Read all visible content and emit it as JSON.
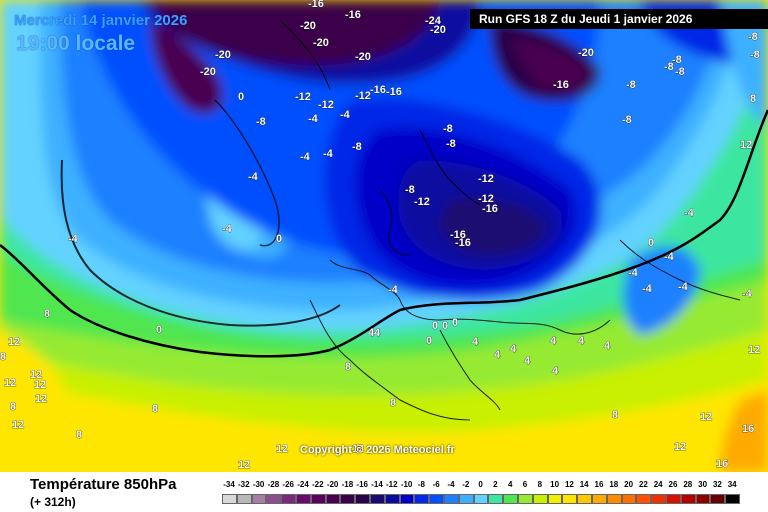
{
  "header": {
    "date": "Mercredi 14 janvier 2026",
    "time": "19:00 locale",
    "run": "Run GFS 18 Z du Jeudi 1 janvier 2026"
  },
  "copyright": "Copyright © 2026 Meteociel.fr",
  "legend": {
    "title": "Température 850hPa",
    "subtitle": "(+ 312h)",
    "ticks": [
      "-34",
      "-32",
      "-30",
      "-28",
      "-26",
      "-24",
      "-22",
      "-20",
      "-18",
      "-16",
      "-14",
      "-12",
      "-10",
      "-8",
      "-6",
      "-4",
      "-2",
      "0",
      "2",
      "4",
      "6",
      "8",
      "10",
      "12",
      "14",
      "16",
      "18",
      "20",
      "22",
      "24",
      "26",
      "28",
      "30",
      "32",
      "34"
    ],
    "colors": [
      "#d8d8d8",
      "#b8b8b8",
      "#a67fa6",
      "#8c4f8c",
      "#7a2a7a",
      "#6a0a6a",
      "#5a005f",
      "#4a0050",
      "#3a0048",
      "#2a004a",
      "#1a0a70",
      "#0a0aa0",
      "#0000c8",
      "#0028e6",
      "#0050ff",
      "#1e80ff",
      "#3cb0ff",
      "#64d2ff",
      "#3ce6a0",
      "#50e650",
      "#96ea32",
      "#c8f000",
      "#f0f000",
      "#ffe600",
      "#ffc800",
      "#ffaa00",
      "#ff8c00",
      "#ff6e00",
      "#ff5000",
      "#f03000",
      "#d81000",
      "#b40000",
      "#8c0000",
      "#640000",
      "#000000"
    ]
  },
  "map_labels": [
    {
      "text": "-16",
      "color": "#fff"
    },
    {
      "text": "-16",
      "color": "#fff"
    },
    {
      "text": "-20",
      "color": "#fff"
    },
    {
      "text": "-20",
      "color": "#fff"
    },
    {
      "text": "-20",
      "color": "#fff"
    },
    {
      "text": "-24",
      "color": "#fff"
    },
    {
      "text": "-20",
      "color": "#fff"
    },
    {
      "text": "-20",
      "color": "#fff"
    },
    {
      "text": "-20",
      "color": "#fff"
    },
    {
      "text": "-16",
      "color": "#fff"
    },
    {
      "text": "-16",
      "color": "#fff"
    },
    {
      "text": "-20",
      "color": "#fff"
    },
    {
      "text": "-12",
      "color": "#fff"
    },
    {
      "text": "-12",
      "color": "#fff"
    },
    {
      "text": "-16",
      "color": "#fff"
    },
    {
      "text": "-8",
      "color": "#fff"
    },
    {
      "text": "-8",
      "color": "#fff"
    },
    {
      "text": "-12",
      "color": "#fff"
    },
    {
      "text": "-4",
      "color": "#fff"
    },
    {
      "text": "-4",
      "color": "#fff"
    },
    {
      "text": "-8",
      "color": "#fff"
    },
    {
      "text": "-4",
      "color": "#fff"
    },
    {
      "text": "-4",
      "color": "#fff"
    },
    {
      "text": "-8",
      "color": "#fff"
    },
    {
      "text": "-8",
      "color": "#fff"
    },
    {
      "text": "-8",
      "color": "#fff"
    },
    {
      "text": "-8",
      "color": "#fff"
    },
    {
      "text": "-12",
      "color": "#fff"
    },
    {
      "text": "-12",
      "color": "#fff"
    },
    {
      "text": "-12",
      "color": "#fff"
    },
    {
      "text": "-16",
      "color": "#fff"
    },
    {
      "text": "-16",
      "color": "#fff"
    },
    {
      "text": "-16",
      "color": "#fff"
    },
    {
      "text": "-4",
      "color": "#fff"
    },
    {
      "text": "0",
      "color": "#fff"
    },
    {
      "text": "-4",
      "color": "#fff"
    },
    {
      "text": "-4",
      "color": "#fff"
    },
    {
      "text": "0",
      "color": "#fff"
    },
    {
      "text": "-4",
      "color": "#fff"
    },
    {
      "text": "-8",
      "color": "#fff"
    },
    {
      "text": "-8",
      "color": "#fff"
    },
    {
      "text": "-8",
      "color": "#fff"
    },
    {
      "text": "-8",
      "color": "#fff"
    },
    {
      "text": "-8",
      "color": "#fff"
    },
    {
      "text": "-4",
      "color": "#fff"
    },
    {
      "text": "-4",
      "color": "#fff"
    },
    {
      "text": "-4",
      "color": "#fff"
    },
    {
      "text": "0",
      "color": "#fff"
    },
    {
      "text": "-4",
      "color": "#fff"
    },
    {
      "text": "-4",
      "color": "#fff"
    },
    {
      "text": "-4",
      "color": "#fff"
    },
    {
      "text": "0",
      "color": "#fff"
    },
    {
      "text": "8",
      "color": "#fff"
    },
    {
      "text": "8",
      "color": "#fff"
    },
    {
      "text": "4",
      "color": "#fff"
    },
    {
      "text": "0",
      "color": "#fff"
    },
    {
      "text": "0",
      "color": "#fff"
    },
    {
      "text": "0",
      "color": "#fff"
    },
    {
      "text": "4",
      "color": "#fff"
    },
    {
      "text": "4",
      "color": "#fff"
    },
    {
      "text": "4",
      "color": "#fff"
    },
    {
      "text": "4",
      "color": "#fff"
    },
    {
      "text": "4",
      "color": "#fff"
    },
    {
      "text": "4",
      "color": "#fff"
    },
    {
      "text": "4",
      "color": "#fff"
    },
    {
      "text": "4",
      "color": "#fff"
    },
    {
      "text": "4",
      "color": "#fff"
    },
    {
      "text": "8",
      "color": "#fff"
    },
    {
      "text": "8",
      "color": "#fff"
    },
    {
      "text": "8",
      "color": "#fff"
    },
    {
      "text": "8",
      "color": "#fff"
    },
    {
      "text": "8",
      "color": "#fff"
    },
    {
      "text": "12",
      "color": "#fff"
    },
    {
      "text": "12",
      "color": "#fff"
    },
    {
      "text": "12",
      "color": "#fff"
    },
    {
      "text": "12",
      "color": "#fff"
    },
    {
      "text": "12",
      "color": "#fff"
    },
    {
      "text": "12",
      "color": "#fff"
    },
    {
      "text": "12",
      "color": "#fff"
    },
    {
      "text": "12",
      "color": "#fff"
    },
    {
      "text": "12",
      "color": "#fff"
    },
    {
      "text": "16",
      "color": "#fff"
    },
    {
      "text": "16",
      "color": "#fff"
    },
    {
      "text": "8",
      "color": "#fff"
    },
    {
      "text": "8",
      "color": "#fff"
    },
    {
      "text": "12",
      "color": "#fff"
    },
    {
      "text": "12",
      "color": "#fff"
    },
    {
      "text": "12",
      "color": "#fff"
    },
    {
      "text": "12",
      "color": "#fff"
    },
    {
      "text": "0",
      "color": "#fff"
    }
  ]
}
